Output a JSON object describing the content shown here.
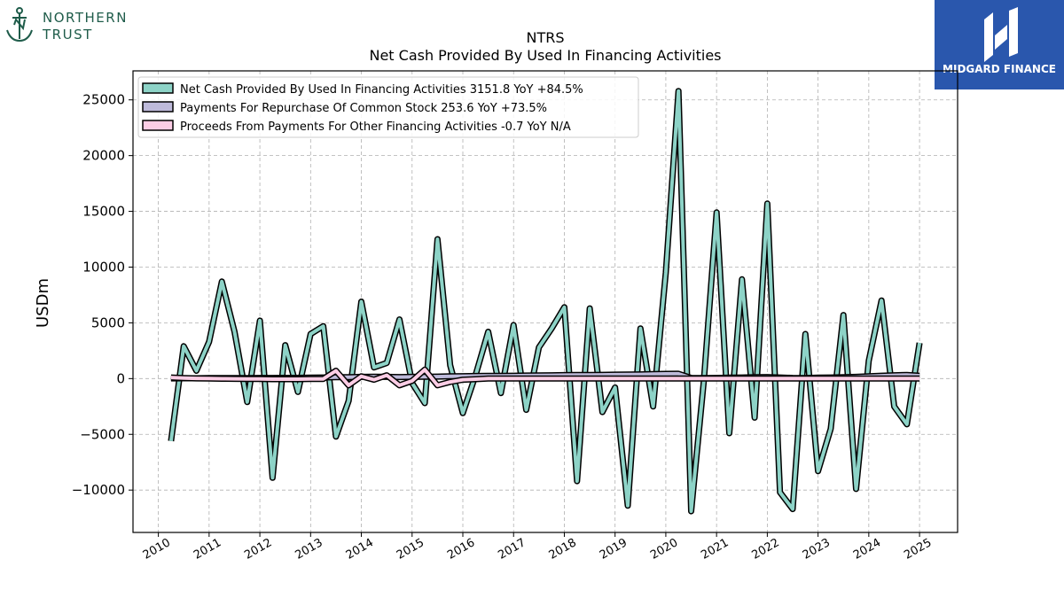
{
  "brand_left": {
    "line1": "NORTHERN",
    "line2": "TRUST",
    "color": "#1f5c4a"
  },
  "brand_right": {
    "name": "MIDGARD FINANCE",
    "bg_color": "#2a57ad"
  },
  "chart_data": {
    "type": "line",
    "title": "NTRS",
    "subtitle": "Net Cash Provided By Used In Financing Activities",
    "ylabel": "USDm",
    "xlabel": "",
    "xlim": [
      2009.5,
      2025.75
    ],
    "ylim": [
      -13800,
      27600
    ],
    "yticks": [
      -10000,
      -5000,
      0,
      5000,
      10000,
      15000,
      20000,
      25000
    ],
    "ytick_labels": [
      "−10000",
      "−5000",
      "0",
      "5000",
      "10000",
      "15000",
      "20000",
      "25000"
    ],
    "xticks": [
      2010,
      2011,
      2012,
      2013,
      2014,
      2015,
      2016,
      2017,
      2018,
      2019,
      2020,
      2021,
      2022,
      2023,
      2024,
      2025
    ],
    "xtick_labels": [
      "2010",
      "2011",
      "2012",
      "2013",
      "2014",
      "2015",
      "2016",
      "2017",
      "2018",
      "2019",
      "2020",
      "2021",
      "2022",
      "2023",
      "2024",
      "2025"
    ],
    "grid": true,
    "legend_position": "top-left",
    "series": [
      {
        "name": "Net Cash Provided By Used In Financing Activities",
        "legend": "Net Cash Provided By Used In Financing Activities  3151.8 YoY +84.5%",
        "color": "#8dd3c7",
        "x": [
          2010.25,
          2010.5,
          2010.75,
          2011.0,
          2011.25,
          2011.5,
          2011.75,
          2012.0,
          2012.25,
          2012.5,
          2012.75,
          2013.0,
          2013.25,
          2013.5,
          2013.75,
          2014.0,
          2014.25,
          2014.5,
          2014.75,
          2015.0,
          2015.25,
          2015.5,
          2015.75,
          2016.0,
          2016.25,
          2016.5,
          2016.75,
          2017.0,
          2017.25,
          2017.5,
          2017.75,
          2018.0,
          2018.25,
          2018.5,
          2018.75,
          2019.0,
          2019.25,
          2019.5,
          2019.75,
          2020.0,
          2020.25,
          2020.5,
          2020.75,
          2021.0,
          2021.25,
          2021.5,
          2021.75,
          2022.0,
          2022.25,
          2022.5,
          2022.75,
          2023.0,
          2023.25,
          2023.5,
          2023.75,
          2024.0,
          2024.25,
          2024.5,
          2024.75,
          2025.0
        ],
        "values": [
          -5600,
          2900,
          700,
          3300,
          8700,
          4200,
          -2100,
          5200,
          -8900,
          3000,
          -1200,
          4000,
          4700,
          -5200,
          -2000,
          6900,
          1000,
          1400,
          5300,
          -400,
          -2200,
          12500,
          1200,
          -3100,
          300,
          4200,
          -1300,
          4800,
          -2800,
          2800,
          4500,
          6400,
          -9200,
          6300,
          -3000,
          -800,
          -11400,
          4500,
          -2500,
          9500,
          25800,
          -11900,
          -200,
          14900,
          -4900,
          8900,
          -3500,
          15700,
          -10200,
          -11700,
          4000,
          -8300,
          -4500,
          5700,
          -9900,
          1600,
          7000,
          -2500,
          -4100,
          3200
        ]
      },
      {
        "name": "Payments For Repurchase Of Common Stock",
        "legend": "Payments For Repurchase Of Common Stock  253.6 YoY +73.5%",
        "color": "#bebada",
        "x": [
          2010.25,
          2010.5,
          2010.75,
          2011.0,
          2011.25,
          2011.5,
          2011.75,
          2012.0,
          2012.25,
          2012.5,
          2012.75,
          2013.0,
          2013.25,
          2013.5,
          2013.75,
          2014.0,
          2014.25,
          2014.5,
          2014.75,
          2015.0,
          2015.25,
          2015.5,
          2015.75,
          2016.0,
          2016.25,
          2016.5,
          2016.75,
          2017.0,
          2017.25,
          2017.5,
          2017.75,
          2018.0,
          2018.25,
          2018.5,
          2018.75,
          2019.0,
          2019.25,
          2019.5,
          2019.75,
          2020.0,
          2020.25,
          2020.5,
          2020.75,
          2021.0,
          2021.25,
          2021.5,
          2021.75,
          2022.0,
          2022.25,
          2022.5,
          2022.75,
          2023.0,
          2023.25,
          2023.5,
          2023.75,
          2024.0,
          2024.25,
          2024.5,
          2024.75,
          2025.0
        ],
        "values": [
          20,
          30,
          30,
          40,
          40,
          50,
          50,
          60,
          60,
          70,
          70,
          80,
          100,
          120,
          130,
          150,
          160,
          150,
          140,
          150,
          160,
          180,
          200,
          220,
          230,
          240,
          250,
          260,
          270,
          290,
          300,
          310,
          320,
          330,
          340,
          350,
          360,
          380,
          400,
          420,
          430,
          60,
          50,
          60,
          80,
          100,
          120,
          140,
          100,
          60,
          50,
          80,
          100,
          130,
          150,
          200,
          260,
          300,
          330,
          254
        ]
      },
      {
        "name": "Proceeds From Payments For Other Financing Activities",
        "legend": "Proceeds From Payments For Other Financing Activities  -0.7 YoY N/A",
        "color": "#fccde5",
        "x": [
          2010.25,
          2010.5,
          2010.75,
          2011.0,
          2011.25,
          2011.5,
          2011.75,
          2012.0,
          2012.25,
          2012.5,
          2012.75,
          2013.0,
          2013.25,
          2013.5,
          2013.75,
          2014.0,
          2014.25,
          2014.5,
          2014.75,
          2015.0,
          2015.25,
          2015.5,
          2015.75,
          2016.0,
          2016.25,
          2016.5,
          2016.75,
          2017.0,
          2017.25,
          2017.5,
          2017.75,
          2018.0,
          2018.25,
          2018.5,
          2018.75,
          2019.0,
          2019.25,
          2019.5,
          2019.75,
          2020.0,
          2020.25,
          2020.5,
          2020.75,
          2021.0,
          2021.25,
          2021.5,
          2021.75,
          2022.0,
          2022.25,
          2022.5,
          2022.75,
          2023.0,
          2023.25,
          2023.5,
          2023.75,
          2024.0,
          2024.25,
          2024.5,
          2024.75,
          2025.0
        ],
        "values": [
          100,
          50,
          20,
          0,
          -10,
          -20,
          -30,
          -40,
          -50,
          -50,
          -50,
          -40,
          -30,
          700,
          -600,
          200,
          -100,
          300,
          -600,
          -200,
          800,
          -600,
          -300,
          -100,
          -50,
          0,
          0,
          0,
          0,
          0,
          0,
          0,
          0,
          0,
          0,
          0,
          0,
          0,
          0,
          0,
          0,
          0,
          0,
          0,
          0,
          0,
          0,
          0,
          0,
          0,
          0,
          0,
          0,
          0,
          0,
          0,
          0,
          0,
          0,
          -1
        ]
      }
    ]
  }
}
